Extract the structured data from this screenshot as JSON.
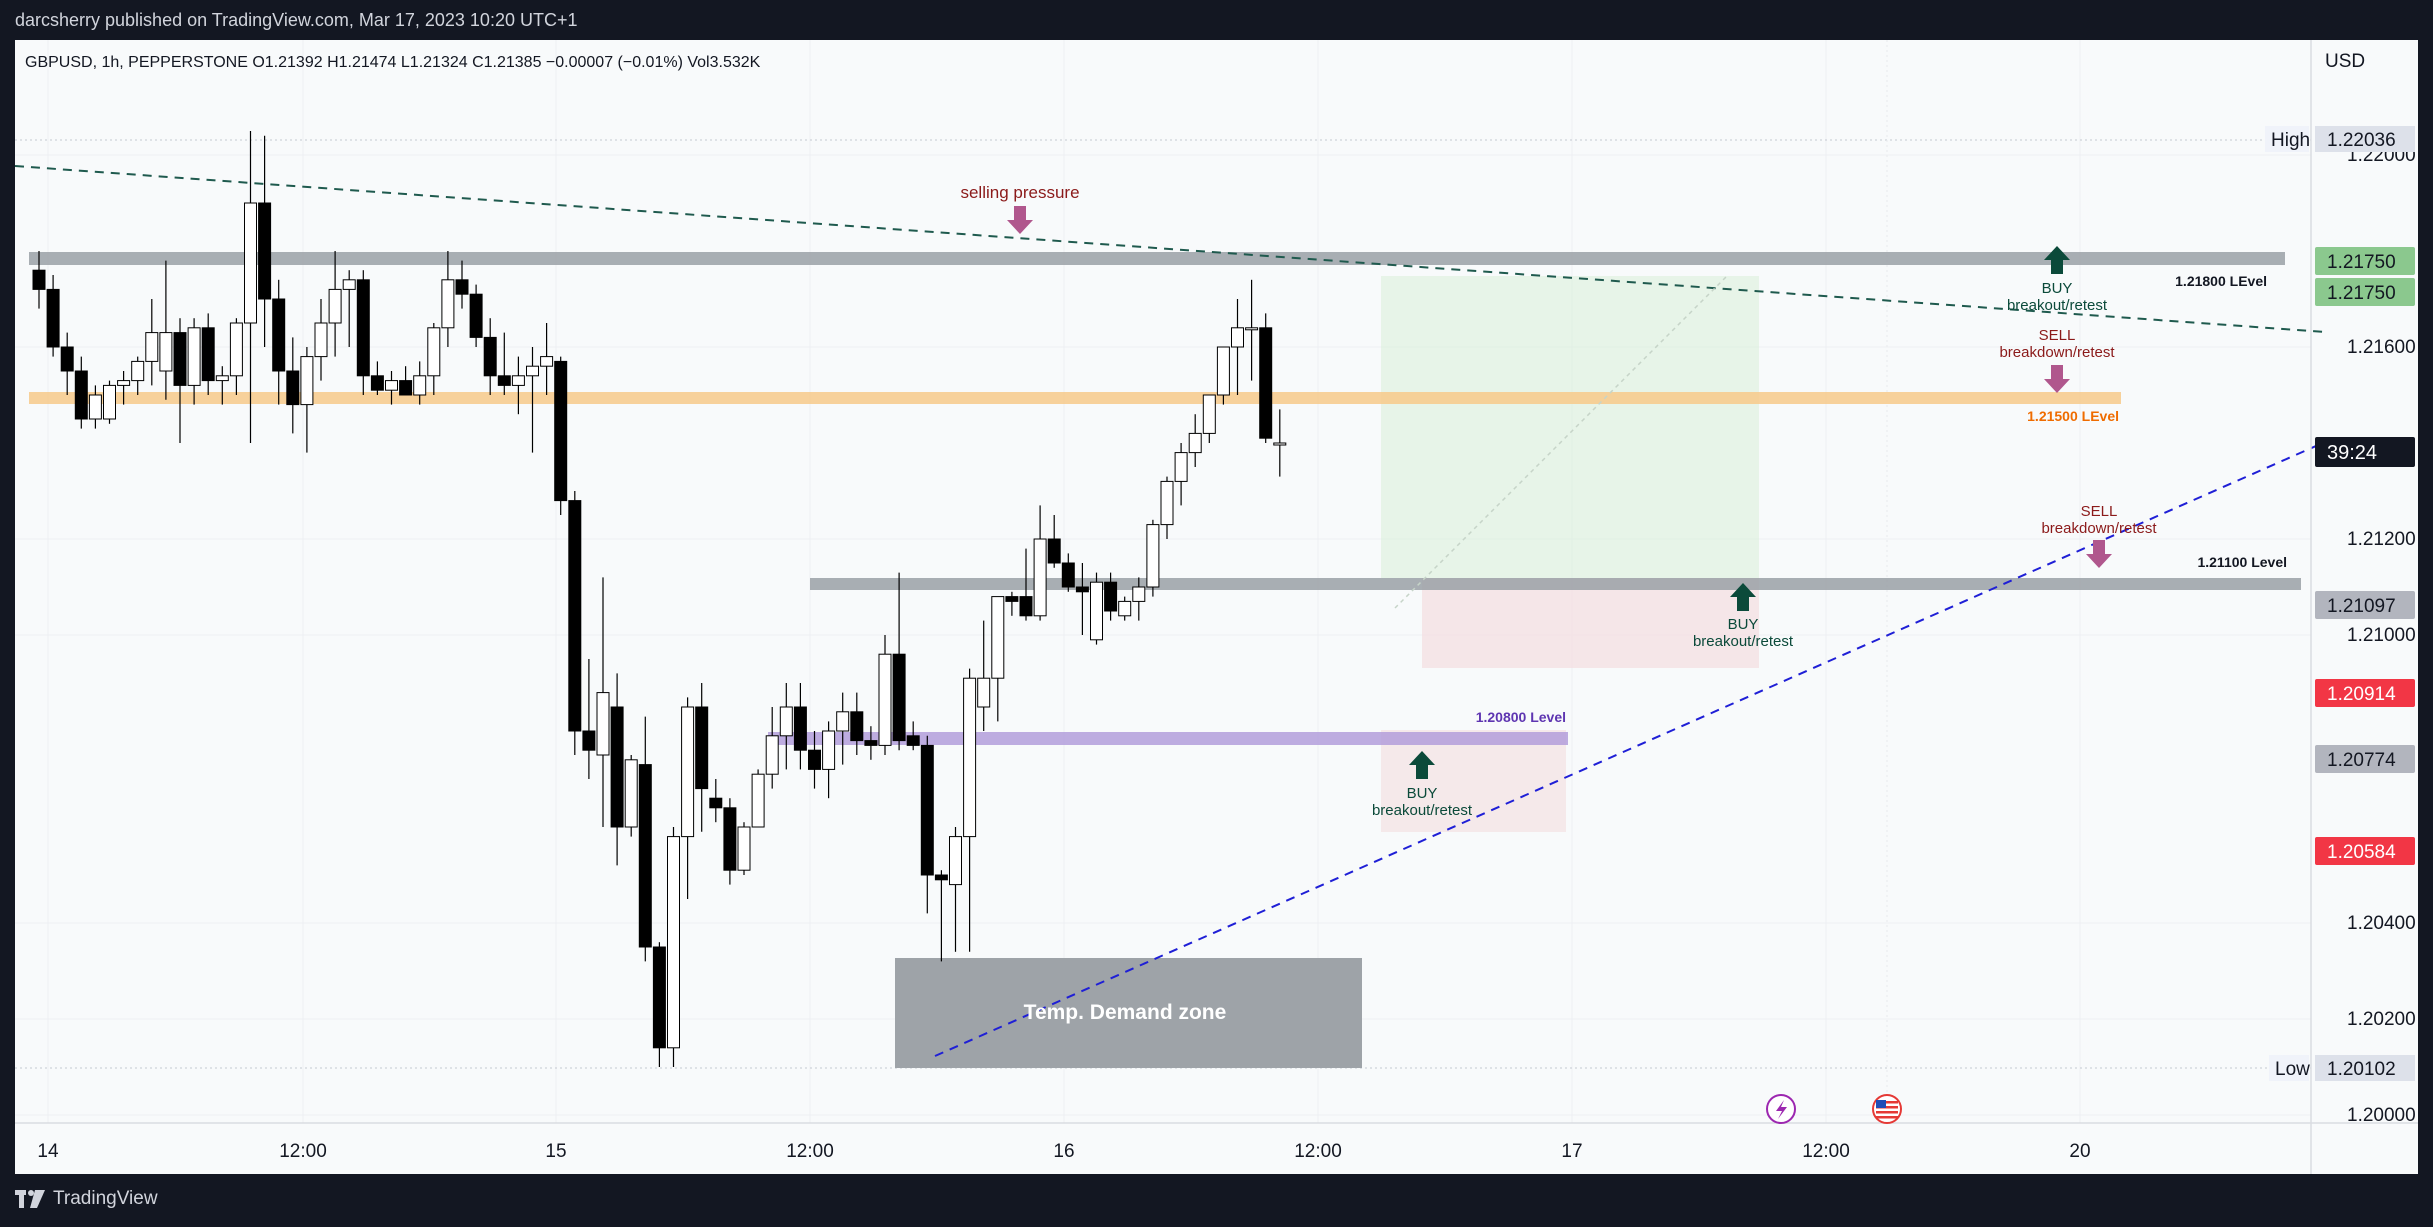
{
  "publisher_line": "darcsherry published on TradingView.com, Mar 17, 2023 10:20 UTC+1",
  "symbol_line": "GBPUSD, 1h, PEPPERSTONE  O1.21392  H1.21474  L1.21324  C1.21385  −0.00007 (−0.01%)  Vol3.532K",
  "currency": "USD",
  "brand": "TradingView",
  "colors": {
    "background": "#f8fafb",
    "frame": "#131722",
    "candle_up": "#ffffff",
    "candle_down": "#000000",
    "resistance_band": "#9aa0a6",
    "orange_band": "#f7c98a",
    "purple_band": "#b39ddb",
    "demand_zone": "#9ea3a8",
    "green_box": "#d8eed9",
    "pink_box": "#f3dde0",
    "buy_arrow": "#0b4a3a",
    "sell_arrow": "#b0578d",
    "trendline_blue": "#1f1fd6",
    "trendline_dark": "#1f5a4e",
    "price_red": "#f23645",
    "price_green": "#4caf50"
  },
  "chart_data": {
    "type": "candlestick",
    "symbol": "GBPUSD",
    "interval": "1h",
    "ylim": [
      1.1996,
      1.2224
    ],
    "y_ticks": [
      1.2,
      1.202,
      1.204,
      1.21,
      1.212,
      1.216,
      1.22
    ],
    "x_ticks": [
      "14",
      "12:00",
      "15",
      "12:00",
      "16",
      "12:00",
      "17",
      "12:00",
      "20"
    ],
    "high": {
      "label": "High",
      "value": "1.22036"
    },
    "low": {
      "label": "Low",
      "value": "1.20102"
    },
    "countdown": "39:24",
    "price_labels": [
      {
        "value": "1.21750",
        "style": "green"
      },
      {
        "value": "1.21750",
        "style": "green"
      },
      {
        "value": "1.21097",
        "style": "gray"
      },
      {
        "value": "1.20914",
        "style": "red"
      },
      {
        "value": "1.20774",
        "style": "gray"
      },
      {
        "value": "1.20584",
        "style": "red"
      }
    ],
    "levels": [
      {
        "label": "1.21800 LEvel",
        "price": 1.2175,
        "style": "gray"
      },
      {
        "label": "1.21500 LEvel",
        "price": 1.215,
        "style": "orange"
      },
      {
        "label": "1.21100 Level",
        "price": 1.211,
        "style": "gray"
      },
      {
        "label": "1.20800 Level",
        "price": 1.2077,
        "style": "purple"
      }
    ],
    "annotations": [
      {
        "text": "selling pressure"
      },
      {
        "text": "Temp. Demand zone"
      },
      {
        "text": "BUY",
        "sub": "breakout/retest"
      },
      {
        "text": "SELL",
        "sub": "breakdown/retest"
      },
      {
        "text": "SELL",
        "sub": "breakdown/retest"
      },
      {
        "text": "BUY",
        "sub": "breakout/retest"
      },
      {
        "text": "BUY",
        "sub": "breakout/retest"
      }
    ],
    "candles": [
      {
        "o": 1.2176,
        "h": 1.218,
        "l": 1.2168,
        "c": 1.2172
      },
      {
        "o": 1.2172,
        "h": 1.2175,
        "l": 1.2158,
        "c": 1.216
      },
      {
        "o": 1.216,
        "h": 1.2163,
        "l": 1.215,
        "c": 1.2155
      },
      {
        "o": 1.2155,
        "h": 1.2158,
        "l": 1.2143,
        "c": 1.2145
      },
      {
        "o": 1.2145,
        "h": 1.2152,
        "l": 1.2143,
        "c": 1.215
      },
      {
        "o": 1.2145,
        "h": 1.2153,
        "l": 1.2144,
        "c": 1.2152
      },
      {
        "o": 1.2152,
        "h": 1.2155,
        "l": 1.2148,
        "c": 1.2153
      },
      {
        "o": 1.2153,
        "h": 1.2158,
        "l": 1.215,
        "c": 1.2157
      },
      {
        "o": 1.2157,
        "h": 1.217,
        "l": 1.2152,
        "c": 1.2163
      },
      {
        "o": 1.2155,
        "h": 1.2178,
        "l": 1.2149,
        "c": 1.2163
      },
      {
        "o": 1.2163,
        "h": 1.2166,
        "l": 1.214,
        "c": 1.2152
      },
      {
        "o": 1.2152,
        "h": 1.2166,
        "l": 1.2148,
        "c": 1.2164
      },
      {
        "o": 1.2164,
        "h": 1.2167,
        "l": 1.215,
        "c": 1.2153
      },
      {
        "o": 1.2153,
        "h": 1.2156,
        "l": 1.2148,
        "c": 1.2154
      },
      {
        "o": 1.2154,
        "h": 1.2166,
        "l": 1.215,
        "c": 1.2165
      },
      {
        "o": 1.2165,
        "h": 1.2205,
        "l": 1.214,
        "c": 1.219
      },
      {
        "o": 1.219,
        "h": 1.2204,
        "l": 1.216,
        "c": 1.217
      },
      {
        "o": 1.217,
        "h": 1.2174,
        "l": 1.2148,
        "c": 1.2155
      },
      {
        "o": 1.2155,
        "h": 1.2162,
        "l": 1.2142,
        "c": 1.2148
      },
      {
        "o": 1.2148,
        "h": 1.216,
        "l": 1.2138,
        "c": 1.2158
      },
      {
        "o": 1.2158,
        "h": 1.217,
        "l": 1.2153,
        "c": 1.2165
      },
      {
        "o": 1.2165,
        "h": 1.218,
        "l": 1.2158,
        "c": 1.2172
      },
      {
        "o": 1.2172,
        "h": 1.2176,
        "l": 1.216,
        "c": 1.2174
      },
      {
        "o": 1.2174,
        "h": 1.2176,
        "l": 1.215,
        "c": 1.2154
      },
      {
        "o": 1.2154,
        "h": 1.2157,
        "l": 1.215,
        "c": 1.2151
      },
      {
        "o": 1.2151,
        "h": 1.2155,
        "l": 1.2148,
        "c": 1.2153
      },
      {
        "o": 1.2153,
        "h": 1.2156,
        "l": 1.215,
        "c": 1.215
      },
      {
        "o": 1.215,
        "h": 1.2157,
        "l": 1.2148,
        "c": 1.2154
      },
      {
        "o": 1.2154,
        "h": 1.2165,
        "l": 1.215,
        "c": 1.2164
      },
      {
        "o": 1.2164,
        "h": 1.218,
        "l": 1.216,
        "c": 1.2174
      },
      {
        "o": 1.2174,
        "h": 1.2178,
        "l": 1.2168,
        "c": 1.2171
      },
      {
        "o": 1.2171,
        "h": 1.2173,
        "l": 1.216,
        "c": 1.2162
      },
      {
        "o": 1.2162,
        "h": 1.2166,
        "l": 1.215,
        "c": 1.2154
      },
      {
        "o": 1.2154,
        "h": 1.2163,
        "l": 1.215,
        "c": 1.2152
      },
      {
        "o": 1.2152,
        "h": 1.2158,
        "l": 1.2146,
        "c": 1.2154
      },
      {
        "o": 1.2154,
        "h": 1.216,
        "l": 1.2138,
        "c": 1.2156
      },
      {
        "o": 1.2156,
        "h": 1.2165,
        "l": 1.215,
        "c": 1.2158
      },
      {
        "o": 1.2157,
        "h": 1.2158,
        "l": 1.2125,
        "c": 1.2128
      },
      {
        "o": 1.2128,
        "h": 1.213,
        "l": 1.2075,
        "c": 1.208
      },
      {
        "o": 1.208,
        "h": 1.2095,
        "l": 1.207,
        "c": 1.2076
      },
      {
        "o": 1.2075,
        "h": 1.2112,
        "l": 1.206,
        "c": 1.2088
      },
      {
        "o": 1.2085,
        "h": 1.2092,
        "l": 1.2052,
        "c": 1.206
      },
      {
        "o": 1.206,
        "h": 1.2075,
        "l": 1.2058,
        "c": 1.2074
      },
      {
        "o": 1.2073,
        "h": 1.2083,
        "l": 1.2032,
        "c": 1.2035
      },
      {
        "o": 1.2035,
        "h": 1.2036,
        "l": 1.201,
        "c": 1.2014
      },
      {
        "o": 1.2014,
        "h": 1.206,
        "l": 1.201,
        "c": 1.2058
      },
      {
        "o": 1.2058,
        "h": 1.2087,
        "l": 1.2045,
        "c": 1.2085
      },
      {
        "o": 1.2085,
        "h": 1.209,
        "l": 1.2059,
        "c": 1.2068
      },
      {
        "o": 1.2066,
        "h": 1.207,
        "l": 1.2061,
        "c": 1.2064
      },
      {
        "o": 1.2064,
        "h": 1.2066,
        "l": 1.2048,
        "c": 1.2051
      },
      {
        "o": 1.2051,
        "h": 1.2061,
        "l": 1.205,
        "c": 1.206
      },
      {
        "o": 1.206,
        "h": 1.2072,
        "l": 1.206,
        "c": 1.2071
      },
      {
        "o": 1.2071,
        "h": 1.2085,
        "l": 1.2068,
        "c": 1.2079
      },
      {
        "o": 1.2079,
        "h": 1.209,
        "l": 1.2072,
        "c": 1.2085
      },
      {
        "o": 1.2085,
        "h": 1.209,
        "l": 1.2072,
        "c": 1.2076
      },
      {
        "o": 1.2076,
        "h": 1.208,
        "l": 1.2068,
        "c": 1.2072
      },
      {
        "o": 1.2072,
        "h": 1.2082,
        "l": 1.2066,
        "c": 1.208
      },
      {
        "o": 1.208,
        "h": 1.2088,
        "l": 1.2073,
        "c": 1.2084
      },
      {
        "o": 1.2084,
        "h": 1.2088,
        "l": 1.2075,
        "c": 1.2078
      },
      {
        "o": 1.2078,
        "h": 1.2081,
        "l": 1.2074,
        "c": 1.2077
      },
      {
        "o": 1.2077,
        "h": 1.21,
        "l": 1.2075,
        "c": 1.2096
      },
      {
        "o": 1.2096,
        "h": 1.2113,
        "l": 1.2076,
        "c": 1.2078
      },
      {
        "o": 1.2079,
        "h": 1.2082,
        "l": 1.2076,
        "c": 1.2077
      },
      {
        "o": 1.2077,
        "h": 1.2079,
        "l": 1.2042,
        "c": 1.205
      },
      {
        "o": 1.205,
        "h": 1.2051,
        "l": 1.2032,
        "c": 1.2049
      },
      {
        "o": 1.2048,
        "h": 1.206,
        "l": 1.2034,
        "c": 1.2058
      },
      {
        "o": 1.2058,
        "h": 1.2093,
        "l": 1.2034,
        "c": 1.2091
      },
      {
        "o": 1.2085,
        "h": 1.2103,
        "l": 1.208,
        "c": 1.2091
      },
      {
        "o": 1.2091,
        "h": 1.2107,
        "l": 1.2082,
        "c": 1.2108
      },
      {
        "o": 1.2108,
        "h": 1.2109,
        "l": 1.2104,
        "c": 1.2107
      },
      {
        "o": 1.2108,
        "h": 1.2118,
        "l": 1.2103,
        "c": 1.2104
      },
      {
        "o": 1.2104,
        "h": 1.2127,
        "l": 1.2103,
        "c": 1.212
      },
      {
        "o": 1.212,
        "h": 1.2125,
        "l": 1.2114,
        "c": 1.2115
      },
      {
        "o": 1.2115,
        "h": 1.2117,
        "l": 1.2109,
        "c": 1.211
      },
      {
        "o": 1.211,
        "h": 1.2115,
        "l": 1.21,
        "c": 1.2109
      },
      {
        "o": 1.2099,
        "h": 1.2113,
        "l": 1.2098,
        "c": 1.2111
      },
      {
        "o": 1.2111,
        "h": 1.2113,
        "l": 1.2103,
        "c": 1.2105
      },
      {
        "o": 1.2104,
        "h": 1.2108,
        "l": 1.2103,
        "c": 1.2107
      },
      {
        "o": 1.2107,
        "h": 1.2112,
        "l": 1.2103,
        "c": 1.211
      },
      {
        "o": 1.211,
        "h": 1.2124,
        "l": 1.2108,
        "c": 1.2123
      },
      {
        "o": 1.2123,
        "h": 1.2133,
        "l": 1.212,
        "c": 1.2132
      },
      {
        "o": 1.2132,
        "h": 1.214,
        "l": 1.2127,
        "c": 1.2138
      },
      {
        "o": 1.2138,
        "h": 1.2146,
        "l": 1.2135,
        "c": 1.2142
      },
      {
        "o": 1.2142,
        "h": 1.215,
        "l": 1.214,
        "c": 1.215
      },
      {
        "o": 1.215,
        "h": 1.216,
        "l": 1.2148,
        "c": 1.216
      },
      {
        "o": 1.216,
        "h": 1.217,
        "l": 1.215,
        "c": 1.2164
      },
      {
        "o": 1.2164,
        "h": 1.2174,
        "l": 1.2153,
        "c": 1.2164
      },
      {
        "o": 1.2164,
        "h": 1.2167,
        "l": 1.214,
        "c": 1.2141
      },
      {
        "o": 1.214,
        "h": 1.2147,
        "l": 1.2133,
        "c": 1.214
      }
    ]
  }
}
